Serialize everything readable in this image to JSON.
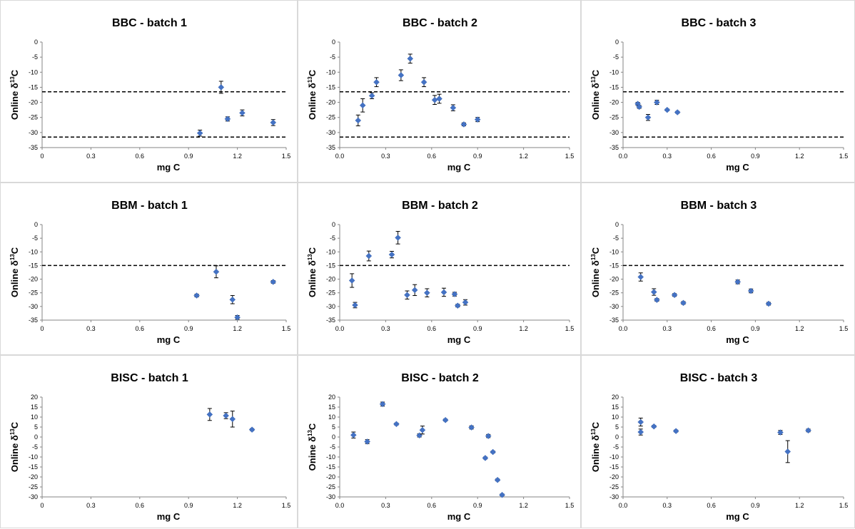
{
  "axes_common": {
    "xlabel": "mg C",
    "xlim": [
      0,
      1.5
    ],
    "xticks": [
      "0",
      "0.3",
      "0.6",
      "0.9",
      "1.2",
      "1.5"
    ],
    "marker_color": "#4472C4"
  },
  "chart_data": [
    {
      "type": "scatter",
      "title": "BBC - batch 1",
      "ylabel": "Online δ13C",
      "ylim": [
        -35,
        0
      ],
      "yticks": [
        "0",
        "-5",
        "-10",
        "-15",
        "-20",
        "-25",
        "-30",
        "-35"
      ],
      "xticks": [
        "0",
        "0.3",
        "0.6",
        "0.9",
        "1.2",
        "1.5"
      ],
      "reference_lines": [
        -16.5,
        -31.5
      ],
      "points": [
        {
          "x": 0.97,
          "y": -30.2,
          "err": 1.0
        },
        {
          "x": 1.1,
          "y": -15.0,
          "err": 2.0
        },
        {
          "x": 1.14,
          "y": -25.5,
          "err": 0.7
        },
        {
          "x": 1.23,
          "y": -23.5,
          "err": 1.0
        },
        {
          "x": 1.42,
          "y": -26.7,
          "err": 1.0
        }
      ]
    },
    {
      "type": "scatter",
      "title": "BBC - batch 2",
      "ylabel": "Online δ13C",
      "ylim": [
        -35,
        0
      ],
      "yticks": [
        "0",
        "-5",
        "-10",
        "-15",
        "-20",
        "-25",
        "-30",
        "-35"
      ],
      "xticks": [
        "0.0",
        "0.3",
        "0.6",
        "0.9",
        "1.2",
        "1.5"
      ],
      "reference_lines": [
        -16.5,
        -31.5
      ],
      "points": [
        {
          "x": 0.12,
          "y": -26.0,
          "err": 1.8
        },
        {
          "x": 0.15,
          "y": -21.0,
          "err": 2.2
        },
        {
          "x": 0.21,
          "y": -17.8,
          "err": 1.0
        },
        {
          "x": 0.24,
          "y": -13.3,
          "err": 1.5
        },
        {
          "x": 0.4,
          "y": -11.0,
          "err": 1.8
        },
        {
          "x": 0.46,
          "y": -5.5,
          "err": 1.5
        },
        {
          "x": 0.55,
          "y": -13.3,
          "err": 1.5
        },
        {
          "x": 0.62,
          "y": -19.2,
          "err": 1.5
        },
        {
          "x": 0.65,
          "y": -18.8,
          "err": 1.5
        },
        {
          "x": 0.74,
          "y": -21.8,
          "err": 1.0
        },
        {
          "x": 0.81,
          "y": -27.3,
          "err": 0.5
        },
        {
          "x": 0.9,
          "y": -25.7,
          "err": 0.7
        }
      ]
    },
    {
      "type": "scatter",
      "title": "BBC - batch 3",
      "ylabel": "Online δ13C",
      "ylim": [
        -35,
        0
      ],
      "yticks": [
        "0",
        "-5",
        "-10",
        "-15",
        "-20",
        "-25",
        "-30",
        "-35"
      ],
      "xticks": [
        "0.0",
        "0.3",
        "0.6",
        "0.9",
        "1.2",
        "1.5"
      ],
      "reference_lines": [
        -16.5,
        -31.5
      ],
      "points": [
        {
          "x": 0.1,
          "y": -20.5,
          "err": 0.5
        },
        {
          "x": 0.11,
          "y": -21.5,
          "err": 0.5
        },
        {
          "x": 0.17,
          "y": -25.0,
          "err": 1.0
        },
        {
          "x": 0.23,
          "y": -20.0,
          "err": 0.7
        },
        {
          "x": 0.3,
          "y": -22.5,
          "err": 0.3
        },
        {
          "x": 0.37,
          "y": -23.3,
          "err": 0.3
        }
      ]
    },
    {
      "type": "scatter",
      "title": "BBM - batch 1",
      "ylabel": "Online δ13C",
      "ylim": [
        -35,
        0
      ],
      "yticks": [
        "0",
        "-5",
        "-10",
        "-15",
        "-20",
        "-25",
        "-30",
        "-35"
      ],
      "xticks": [
        "0",
        "0.3",
        "0.6",
        "0.9",
        "1.2",
        "1.5"
      ],
      "reference_lines": [
        -15
      ],
      "points": [
        {
          "x": 0.95,
          "y": -26.0,
          "err": 0.5
        },
        {
          "x": 1.07,
          "y": -17.3,
          "err": 2.2
        },
        {
          "x": 1.17,
          "y": -27.5,
          "err": 1.5
        },
        {
          "x": 1.2,
          "y": -34.0,
          "err": 0.7
        },
        {
          "x": 1.42,
          "y": -21.0,
          "err": 0.5
        }
      ]
    },
    {
      "type": "scatter",
      "title": "BBM - batch 2",
      "ylabel": "Online δ13C",
      "ylim": [
        -35,
        0
      ],
      "yticks": [
        "0",
        "-5",
        "-10",
        "-15",
        "-20",
        "-25",
        "-30",
        "-35"
      ],
      "xticks": [
        "0.0",
        "0.3",
        "0.6",
        "0.9",
        "1.2",
        "1.5"
      ],
      "reference_lines": [
        -15
      ],
      "points": [
        {
          "x": 0.08,
          "y": -20.5,
          "err": 2.5
        },
        {
          "x": 0.1,
          "y": -29.5,
          "err": 1.0
        },
        {
          "x": 0.19,
          "y": -11.5,
          "err": 1.8
        },
        {
          "x": 0.34,
          "y": -11.0,
          "err": 1.2
        },
        {
          "x": 0.38,
          "y": -4.8,
          "err": 2.3
        },
        {
          "x": 0.44,
          "y": -25.8,
          "err": 1.5
        },
        {
          "x": 0.49,
          "y": -24.0,
          "err": 2.0
        },
        {
          "x": 0.57,
          "y": -25.0,
          "err": 1.5
        },
        {
          "x": 0.68,
          "y": -24.8,
          "err": 1.5
        },
        {
          "x": 0.75,
          "y": -25.5,
          "err": 0.7
        },
        {
          "x": 0.77,
          "y": -29.7,
          "err": 0.5
        },
        {
          "x": 0.82,
          "y": -28.5,
          "err": 1.0
        }
      ]
    },
    {
      "type": "scatter",
      "title": "BBM - batch 3",
      "ylabel": "Online δ13C",
      "ylim": [
        -35,
        0
      ],
      "yticks": [
        "0",
        "-5",
        "-10",
        "-15",
        "-20",
        "-25",
        "-30",
        "-35"
      ],
      "xticks": [
        "0.0",
        "0.3",
        "0.6",
        "0.9",
        "1.2",
        "1.5"
      ],
      "reference_lines": [
        -15
      ],
      "points": [
        {
          "x": 0.12,
          "y": -19.2,
          "err": 1.5
        },
        {
          "x": 0.21,
          "y": -24.7,
          "err": 1.2
        },
        {
          "x": 0.23,
          "y": -27.6,
          "err": 0.5
        },
        {
          "x": 0.35,
          "y": -25.8,
          "err": 0.5
        },
        {
          "x": 0.41,
          "y": -28.7,
          "err": 0.5
        },
        {
          "x": 0.78,
          "y": -21.0,
          "err": 0.7
        },
        {
          "x": 0.87,
          "y": -24.3,
          "err": 0.7
        },
        {
          "x": 0.99,
          "y": -29.0,
          "err": 0.5
        }
      ]
    },
    {
      "type": "scatter",
      "title": "BISC - batch 1",
      "ylabel": "Online δ13C",
      "ylim": [
        -30,
        20
      ],
      "yticks": [
        "20",
        "15",
        "10",
        "5",
        "0",
        "-5",
        "-10",
        "-15",
        "-20",
        "-25",
        "-30"
      ],
      "xticks": [
        "0",
        "0.3",
        "0.6",
        "0.9",
        "1.2",
        "1.5"
      ],
      "reference_lines": [],
      "points": [
        {
          "x": 1.03,
          "y": 11.3,
          "err": 3.0
        },
        {
          "x": 1.13,
          "y": 10.7,
          "err": 1.5
        },
        {
          "x": 1.17,
          "y": 9.0,
          "err": 4.0
        },
        {
          "x": 1.29,
          "y": 3.7,
          "err": 0.5
        }
      ]
    },
    {
      "type": "scatter",
      "title": "BISC - batch 2",
      "ylabel": "Onine δ13C",
      "ylim": [
        -30,
        20
      ],
      "yticks": [
        "20",
        "15",
        "10",
        "5",
        "0",
        "-5",
        "-10",
        "-15",
        "-20",
        "-25",
        "-30"
      ],
      "xticks": [
        "0.0",
        "0.3",
        "0.6",
        "0.9",
        "1.2",
        "1.5"
      ],
      "reference_lines": [],
      "points": [
        {
          "x": 0.09,
          "y": 1.0,
          "err": 1.5
        },
        {
          "x": 0.18,
          "y": -2.3,
          "err": 1.0
        },
        {
          "x": 0.28,
          "y": 16.5,
          "err": 1.0
        },
        {
          "x": 0.37,
          "y": 6.5,
          "err": 0.5
        },
        {
          "x": 0.52,
          "y": 0.8,
          "err": 0.8
        },
        {
          "x": 0.54,
          "y": 3.5,
          "err": 2.0
        },
        {
          "x": 0.69,
          "y": 8.5,
          "err": 0.5
        },
        {
          "x": 0.86,
          "y": 4.8,
          "err": 0.8
        },
        {
          "x": 0.95,
          "y": -10.5,
          "err": 0.5
        },
        {
          "x": 0.97,
          "y": 0.5,
          "err": 0.8
        },
        {
          "x": 1.0,
          "y": -7.5,
          "err": 0.5
        },
        {
          "x": 1.03,
          "y": -21.5,
          "err": 0.5
        },
        {
          "x": 1.06,
          "y": -29.0,
          "err": 0.5
        }
      ]
    },
    {
      "type": "scatter",
      "title": "BISC - batch 3",
      "ylabel": "Online δ13C",
      "ylim": [
        -30,
        20
      ],
      "yticks": [
        "20",
        "15",
        "10",
        "5",
        "0",
        "-5",
        "-10",
        "-15",
        "-20",
        "-25",
        "-30"
      ],
      "xticks": [
        "0.0",
        "0.3",
        "0.6",
        "0.9",
        "1.2",
        "1.5"
      ],
      "reference_lines": [],
      "points": [
        {
          "x": 0.12,
          "y": 7.5,
          "err": 2.0
        },
        {
          "x": 0.12,
          "y": 2.5,
          "err": 1.5
        },
        {
          "x": 0.21,
          "y": 5.3,
          "err": 0.5
        },
        {
          "x": 0.36,
          "y": 3.0,
          "err": 0.5
        },
        {
          "x": 1.07,
          "y": 2.3,
          "err": 1.0
        },
        {
          "x": 1.12,
          "y": -7.3,
          "err": 5.5
        },
        {
          "x": 1.26,
          "y": 3.3,
          "err": 0.7
        }
      ]
    }
  ]
}
